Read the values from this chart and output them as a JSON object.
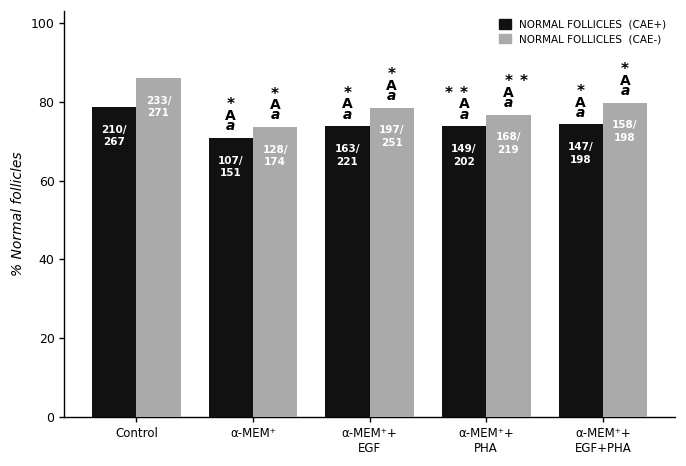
{
  "categories": [
    "Control",
    "α-MEM⁺",
    "α-MEM⁺+\nEGF",
    "α-MEM⁺+\nPHA",
    "α-MEM⁺+\nEGF+PHA"
  ],
  "black_values": [
    78.65,
    70.86,
    73.76,
    73.76,
    74.24
  ],
  "gray_values": [
    86.0,
    73.56,
    78.49,
    76.71,
    79.8
  ],
  "black_labels": [
    "210/\n267",
    "107/\n151",
    "163/\n221",
    "149/\n202",
    "147/\n198"
  ],
  "gray_labels": [
    "233/\n271",
    "128/\n174",
    "197/\n251",
    "168/\n219",
    "158/\n198"
  ],
  "bar_width": 0.38,
  "black_color": "#111111",
  "gray_color": "#aaaaaa",
  "ylabel": "% Normal follicles",
  "ylim": [
    0,
    103
  ],
  "yticks": [
    0,
    20,
    40,
    60,
    80,
    100
  ],
  "legend_black": "NORMAL FOLLICLES  (CAE+)",
  "legend_gray": "NORMAL FOLLICLES  (CAE-)",
  "figsize": [
    6.86,
    4.66
  ],
  "dpi": 100
}
